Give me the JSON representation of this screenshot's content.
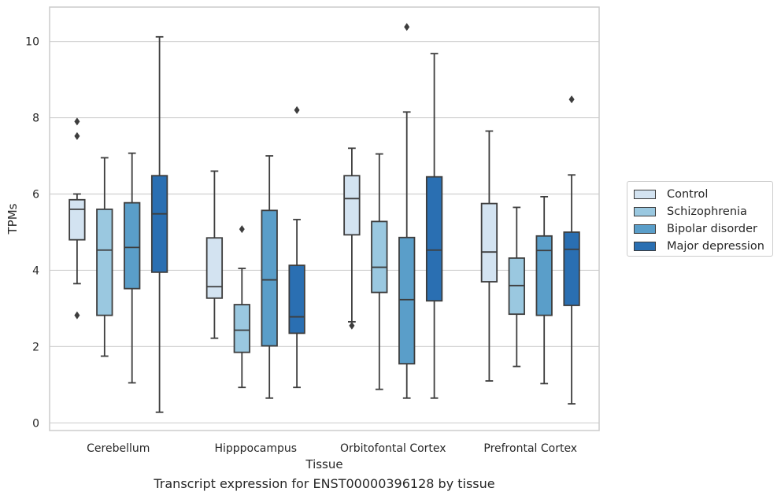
{
  "chart_data": {
    "type": "box",
    "xlabel": "Tissue",
    "ylabel": "TPMs",
    "ylim": [
      -0.2,
      10.9
    ],
    "yticks": [
      0,
      2,
      4,
      6,
      8,
      10
    ],
    "grid": true,
    "legend_placement": "right",
    "categories": [
      "Cerebellum",
      "Hipppocampus",
      "Orbitofontal Cortex",
      "Prefrontal Cortex"
    ],
    "series": [
      {
        "name": "Control",
        "color": "#d3e3f1",
        "boxes": [
          {
            "whislo": 3.65,
            "q1": 4.8,
            "med": 5.6,
            "q3": 5.85,
            "whishi": 6.0,
            "fliers": [
              7.9,
              7.52,
              2.82
            ]
          },
          {
            "whislo": 2.22,
            "q1": 3.27,
            "med": 3.57,
            "q3": 4.85,
            "whishi": 6.6,
            "fliers": []
          },
          {
            "whislo": 2.65,
            "q1": 4.93,
            "med": 5.88,
            "q3": 6.48,
            "whishi": 7.2,
            "fliers": [
              2.55
            ]
          },
          {
            "whislo": 1.1,
            "q1": 3.7,
            "med": 4.48,
            "q3": 5.75,
            "whishi": 7.65,
            "fliers": []
          }
        ]
      },
      {
        "name": "Schizophrenia",
        "color": "#9ac8e0",
        "boxes": [
          {
            "whislo": 1.75,
            "q1": 2.82,
            "med": 4.53,
            "q3": 5.6,
            "whishi": 6.95,
            "fliers": []
          },
          {
            "whislo": 0.93,
            "q1": 1.85,
            "med": 2.43,
            "q3": 3.1,
            "whishi": 4.05,
            "fliers": [
              5.08
            ]
          },
          {
            "whislo": 0.88,
            "q1": 3.42,
            "med": 4.08,
            "q3": 5.28,
            "whishi": 7.05,
            "fliers": []
          },
          {
            "whislo": 1.48,
            "q1": 2.85,
            "med": 3.6,
            "q3": 4.32,
            "whishi": 5.65,
            "fliers": []
          }
        ]
      },
      {
        "name": "Bipolar disorder",
        "color": "#5a9ec9",
        "boxes": [
          {
            "whislo": 1.05,
            "q1": 3.52,
            "med": 4.6,
            "q3": 5.77,
            "whishi": 7.07,
            "fliers": []
          },
          {
            "whislo": 0.65,
            "q1": 2.02,
            "med": 3.75,
            "q3": 5.57,
            "whishi": 7.0,
            "fliers": []
          },
          {
            "whislo": 0.65,
            "q1": 1.55,
            "med": 3.23,
            "q3": 4.86,
            "whishi": 8.15,
            "fliers": [
              10.38
            ]
          },
          {
            "whislo": 1.03,
            "q1": 2.82,
            "med": 4.52,
            "q3": 4.9,
            "whishi": 5.93,
            "fliers": []
          }
        ]
      },
      {
        "name": "Major depression",
        "color": "#2a6fb2",
        "boxes": [
          {
            "whislo": 0.28,
            "q1": 3.95,
            "med": 5.48,
            "q3": 6.48,
            "whishi": 10.12,
            "fliers": []
          },
          {
            "whislo": 0.93,
            "q1": 2.35,
            "med": 2.78,
            "q3": 4.13,
            "whishi": 5.33,
            "fliers": [
              8.2
            ]
          },
          {
            "whislo": 0.65,
            "q1": 3.2,
            "med": 4.53,
            "q3": 6.45,
            "whishi": 9.68,
            "fliers": []
          },
          {
            "whislo": 0.5,
            "q1": 3.08,
            "med": 4.55,
            "q3": 5.0,
            "whishi": 6.5,
            "fliers": [
              8.48
            ]
          }
        ]
      }
    ]
  },
  "caption": "Transcript expression for ENST00000396128 by tissue"
}
